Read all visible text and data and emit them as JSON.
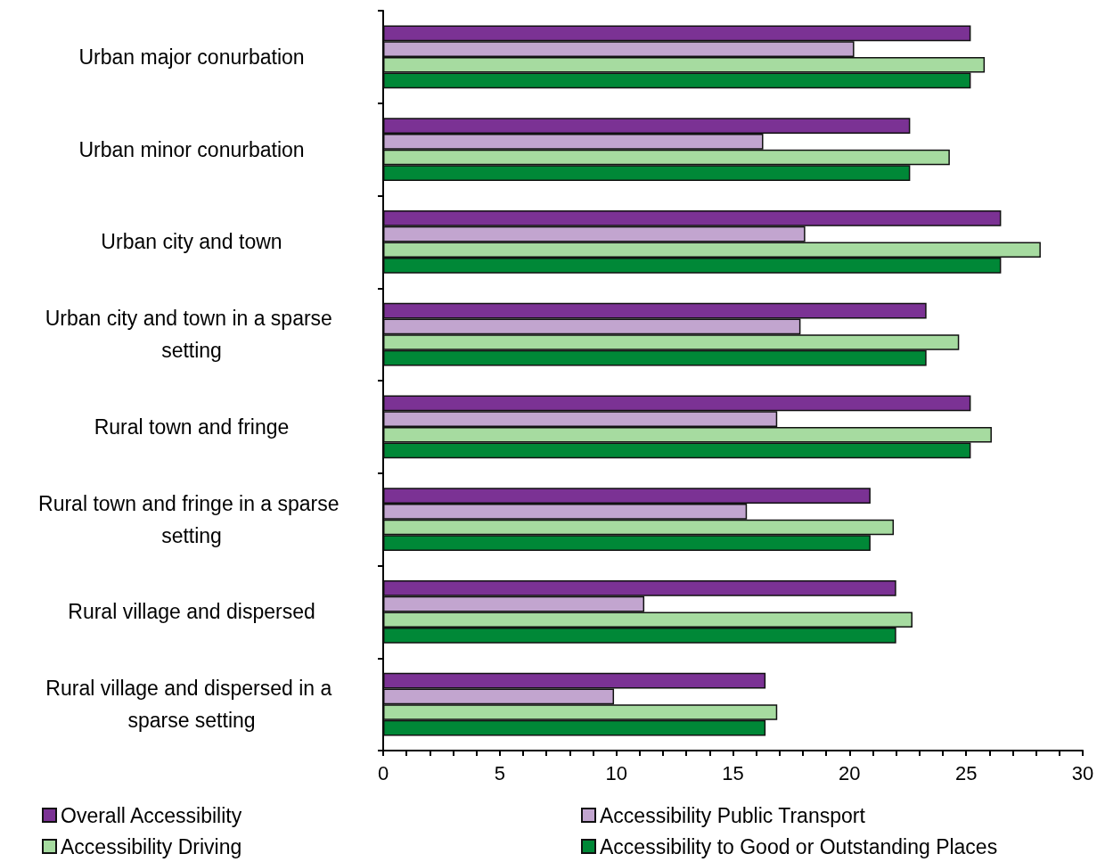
{
  "chart_data": {
    "type": "bar",
    "orientation": "horizontal",
    "categories": [
      "Urban major conurbation",
      "Urban minor conurbation",
      "Urban city and town",
      "Urban city and town in a sparse setting",
      "Rural town and fringe",
      "Rural town and fringe in a sparse setting",
      "Rural village and dispersed",
      "Rural village and dispersed in a sparse setting"
    ],
    "series": [
      {
        "name": "Overall Accessibility",
        "color": "#7b3294",
        "values": [
          25.2,
          22.6,
          26.5,
          23.3,
          25.2,
          20.9,
          22.0,
          16.4
        ]
      },
      {
        "name": "Accessibility Public Transport",
        "color": "#c2a5cf",
        "values": [
          20.2,
          16.3,
          18.1,
          17.9,
          16.9,
          15.6,
          11.2,
          9.9
        ]
      },
      {
        "name": "Accessibility Driving",
        "color": "#a6dba0",
        "values": [
          25.8,
          24.3,
          28.2,
          24.7,
          26.1,
          21.9,
          22.7,
          16.9
        ]
      },
      {
        "name": "Accessibility to Good or Outstanding Places",
        "color": "#008837",
        "values": [
          25.2,
          22.6,
          26.5,
          23.3,
          25.2,
          20.9,
          22.0,
          16.4
        ]
      }
    ],
    "xlim": [
      0,
      30
    ],
    "xticks": [
      0,
      {
        "value": 1,
        "label": null
      },
      {
        "value": 2,
        "label": null
      },
      {
        "value": 3,
        "label": null
      },
      {
        "value": 4,
        "label": null
      },
      5,
      {
        "value": 6,
        "label": null
      },
      {
        "value": 7,
        "label": null
      },
      {
        "value": 8,
        "label": null
      },
      {
        "value": 9,
        "label": null
      },
      10,
      {
        "value": 11,
        "label": null
      },
      {
        "value": 12,
        "label": null
      },
      {
        "value": 13,
        "label": null
      },
      {
        "value": 14,
        "label": null
      },
      15,
      {
        "value": 16,
        "label": null
      },
      {
        "value": 17,
        "label": null
      },
      {
        "value": 18,
        "label": null
      },
      {
        "value": 19,
        "label": null
      },
      20,
      {
        "value": 21,
        "label": null
      },
      {
        "value": 22,
        "label": null
      },
      {
        "value": 23,
        "label": null
      },
      {
        "value": 24,
        "label": null
      },
      25,
      {
        "value": 26,
        "label": null
      },
      {
        "value": 27,
        "label": null
      },
      {
        "value": 28,
        "label": null
      },
      {
        "value": 29,
        "label": null
      },
      30
    ],
    "grid": false,
    "legend": "bottom"
  }
}
